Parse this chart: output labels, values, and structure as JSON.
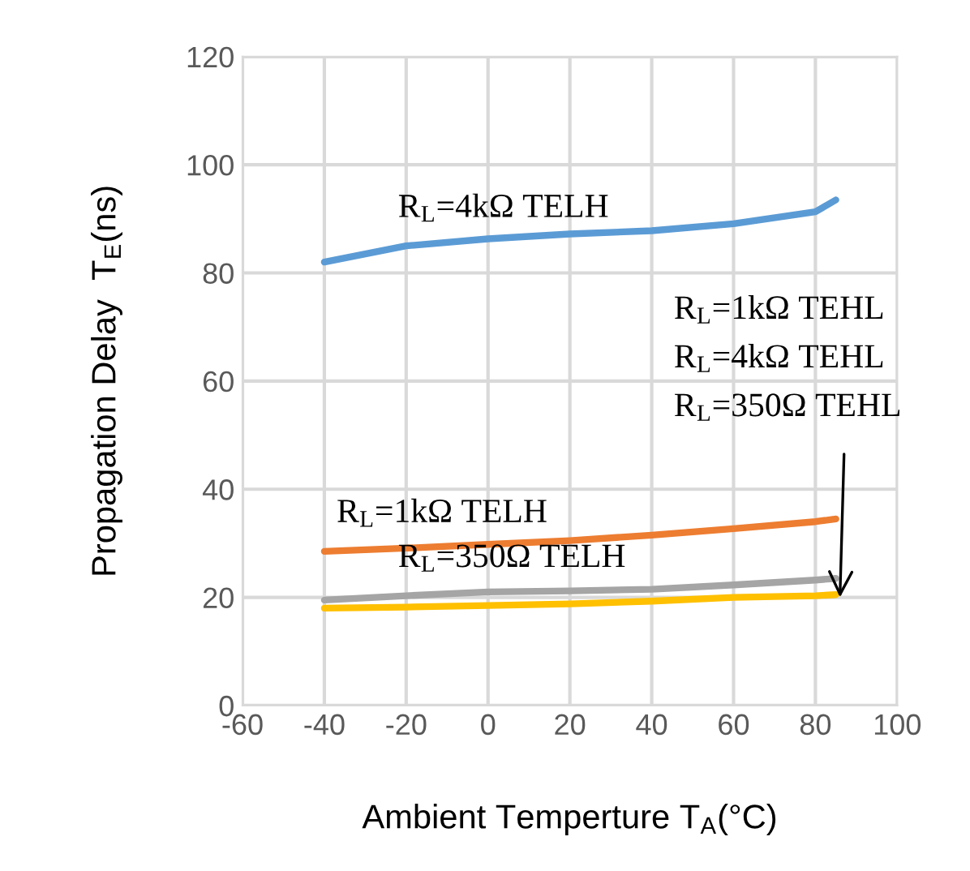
{
  "chart_data": {
    "type": "line",
    "xlabel": "Ambient Temperture T$_{A}$(°C)",
    "ylabel": "Propagation Delay  T$_{E}$(ns)",
    "xlim": [
      -60,
      100
    ],
    "xticks": [
      -60,
      -40,
      -20,
      0,
      20,
      40,
      60,
      80,
      100
    ],
    "ylim": [
      0,
      120
    ],
    "yticks": [
      0,
      20,
      40,
      60,
      80,
      100,
      120
    ],
    "grid": true,
    "legend": false,
    "marker": "none",
    "line_style": "solid",
    "series": [
      {
        "color": "#5b9bd5",
        "x": [
          -40,
          -20,
          0,
          20,
          40,
          60,
          80,
          85
        ],
        "values": [
          82,
          85,
          86.3,
          87.2,
          87.8,
          89.1,
          91.3,
          93.5
        ]
      },
      {
        "color": "#ed7d31",
        "x": [
          -40,
          -20,
          0,
          20,
          40,
          60,
          80,
          85
        ],
        "values": [
          28.5,
          29.1,
          29.8,
          30.5,
          31.5,
          32.7,
          34,
          34.5
        ]
      },
      {
        "color": "#a5a5a5",
        "x": [
          -40,
          -20,
          0,
          20,
          40,
          60,
          80,
          85
        ],
        "values": [
          19.5,
          20.3,
          21,
          21.2,
          21.5,
          22.3,
          23.2,
          23.5
        ]
      },
      {
        "color": "#ffc000",
        "x": [
          -40,
          -20,
          0,
          20,
          40,
          60,
          80,
          85
        ],
        "values": [
          18,
          18.2,
          18.5,
          18.8,
          19.3,
          20,
          20.3,
          20.5
        ]
      }
    ],
    "annotations": [
      {
        "text": "R$_{L}$=4kΩ TELH",
        "x": -20,
        "y": 85
      },
      {
        "text": "R$_{L}$=1kΩ TELH",
        "x": -35,
        "y": 28.6
      },
      {
        "text": "R$_{L}$=350Ω TELH",
        "x": -20,
        "y": 20.3
      },
      "R$_{L}$=1kΩ TEHL",
      "R$_{L}$=4kΩ TEHL",
      {
        "text": "R$_{L}$=350Ω TEHL",
        "x": 86,
        "y": 20
      }
    ]
  }
}
